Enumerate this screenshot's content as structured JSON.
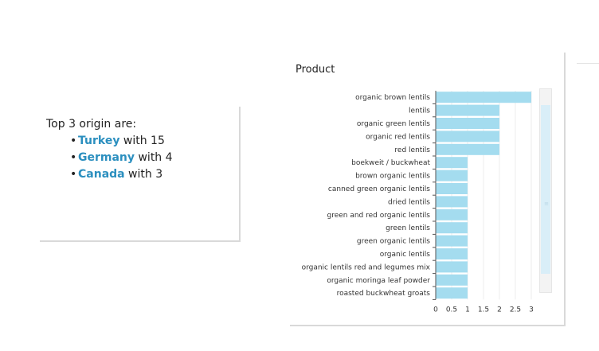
{
  "summary": {
    "intro": "Top 3 origin are:",
    "items": [
      {
        "country": "Turkey",
        "suffix": " with 15"
      },
      {
        "country": "Germany",
        "suffix": " with 4"
      },
      {
        "country": "Canada",
        "suffix": " with 3"
      }
    ]
  },
  "chart_data": {
    "type": "bar",
    "orientation": "horizontal",
    "title": "Product",
    "categories": [
      "organic brown lentils",
      "lentils",
      "organic green lentils",
      "organic red lentils",
      "red lentils",
      "boekweit / buckwheat",
      "brown organic lentils",
      "canned green organic lentils",
      "dried lentils",
      "green and red organic lentils",
      "green lentils",
      "green organic lentils",
      "organic lentils",
      "organic lentils red and legumes mix",
      "organic moringa leaf powder",
      "roasted buckwheat groats"
    ],
    "values": [
      3,
      2,
      2,
      2,
      2,
      1,
      1,
      1,
      1,
      1,
      1,
      1,
      1,
      1,
      1,
      1
    ],
    "xticks": [
      "0",
      "0.5",
      "1",
      "1.5",
      "2",
      "2.5",
      "3"
    ],
    "xlim": [
      0,
      3
    ],
    "grid": true,
    "bar_color": "#a4dcef"
  }
}
